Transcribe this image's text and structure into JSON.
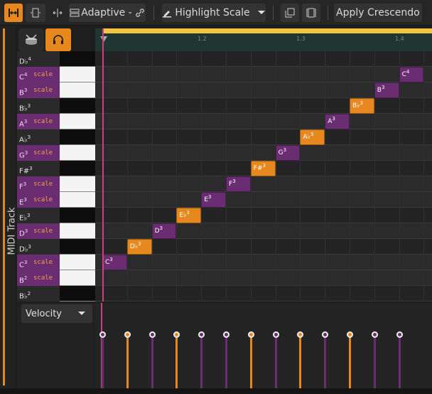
{
  "toolbar": {
    "snap_label": "Adaptive -",
    "highlight_label": "Highlight Scale",
    "function_label": "Apply Crescendo"
  },
  "track": {
    "name": "MIDI Track"
  },
  "ruler": {
    "ticks": [
      "1.2",
      "1.3",
      "1.4"
    ]
  },
  "keys": [
    {
      "label": "D♭",
      "octave": "4",
      "scale": false,
      "color": "black"
    },
    {
      "label": "C",
      "octave": "4",
      "scale": true,
      "color": "white"
    },
    {
      "label": "B",
      "octave": "3",
      "scale": true,
      "color": "white"
    },
    {
      "label": "B♭",
      "octave": "3",
      "scale": false,
      "color": "black"
    },
    {
      "label": "A",
      "octave": "3",
      "scale": true,
      "color": "white"
    },
    {
      "label": "A♭",
      "octave": "3",
      "scale": false,
      "color": "black"
    },
    {
      "label": "G",
      "octave": "3",
      "scale": true,
      "color": "white"
    },
    {
      "label": "F#",
      "octave": "3",
      "scale": false,
      "color": "black"
    },
    {
      "label": "F",
      "octave": "3",
      "scale": true,
      "color": "white"
    },
    {
      "label": "E",
      "octave": "3",
      "scale": true,
      "color": "white"
    },
    {
      "label": "E♭",
      "octave": "3",
      "scale": false,
      "color": "black"
    },
    {
      "label": "D",
      "octave": "3",
      "scale": true,
      "color": "white"
    },
    {
      "label": "D♭",
      "octave": "3",
      "scale": false,
      "color": "black"
    },
    {
      "label": "C",
      "octave": "3",
      "scale": true,
      "color": "white"
    },
    {
      "label": "B",
      "octave": "2",
      "scale": true,
      "color": "white"
    },
    {
      "label": "B♭",
      "octave": "2",
      "scale": false,
      "color": "black"
    }
  ],
  "scale_tag": "scale",
  "notes": [
    {
      "label": "C",
      "octave": "3",
      "key_index": 13,
      "step": 0,
      "in_scale": true
    },
    {
      "label": "D♭",
      "octave": "3",
      "key_index": 12,
      "step": 1,
      "in_scale": false
    },
    {
      "label": "D",
      "octave": "3",
      "key_index": 11,
      "step": 2,
      "in_scale": true
    },
    {
      "label": "E♭",
      "octave": "3",
      "key_index": 10,
      "step": 3,
      "in_scale": false
    },
    {
      "label": "E",
      "octave": "3",
      "key_index": 9,
      "step": 4,
      "in_scale": true
    },
    {
      "label": "F",
      "octave": "3",
      "key_index": 8,
      "step": 5,
      "in_scale": true
    },
    {
      "label": "F#",
      "octave": "3",
      "key_index": 7,
      "step": 6,
      "in_scale": false
    },
    {
      "label": "G",
      "octave": "3",
      "key_index": 6,
      "step": 7,
      "in_scale": true
    },
    {
      "label": "A♭",
      "octave": "3",
      "key_index": 5,
      "step": 8,
      "in_scale": false
    },
    {
      "label": "A",
      "octave": "3",
      "key_index": 4,
      "step": 9,
      "in_scale": true
    },
    {
      "label": "B♭",
      "octave": "3",
      "key_index": 3,
      "step": 10,
      "in_scale": false
    },
    {
      "label": "B",
      "octave": "3",
      "key_index": 2,
      "step": 11,
      "in_scale": true
    },
    {
      "label": "C",
      "octave": "4",
      "key_index": 1,
      "step": 12,
      "in_scale": true
    }
  ],
  "velocity": {
    "select_label": "Velocity"
  },
  "colors": {
    "accent": "#e6881d",
    "scale": "#6a2d72",
    "playhead": "#d0407f",
    "ruler": "#f5c542"
  }
}
